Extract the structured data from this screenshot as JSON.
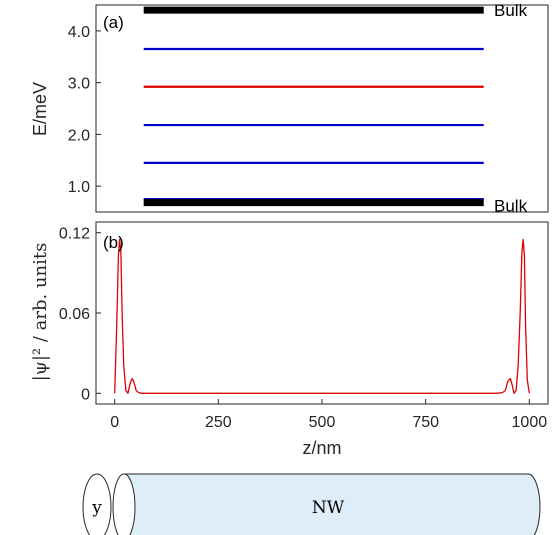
{
  "chart_data": [
    {
      "panel": "(a)",
      "type": "line",
      "ylabel": "E/meV",
      "ylim": [
        0.5,
        4.5
      ],
      "yticks": [
        1.0,
        2.0,
        3.0,
        4.0
      ],
      "ytick_labels": [
        "1.0",
        "2.0",
        "3.0",
        "4.0"
      ],
      "xrange": [
        70,
        890
      ],
      "levels": [
        {
          "energy": 4.4,
          "color": "#000000",
          "width": "thick",
          "label": "Bulk"
        },
        {
          "energy": 3.65,
          "color": "#0000cc",
          "width": "thin"
        },
        {
          "energy": 2.92,
          "color": "#dd0000",
          "width": "thin"
        },
        {
          "energy": 2.18,
          "color": "#0000cc",
          "width": "thin"
        },
        {
          "energy": 1.45,
          "color": "#0000cc",
          "width": "thin"
        },
        {
          "energy": 0.75,
          "color": "#0000cc",
          "width": "thin"
        },
        {
          "energy": 0.68,
          "color": "#000000",
          "width": "thick",
          "label": "Bulk"
        }
      ],
      "grid": false
    },
    {
      "panel": "(b)",
      "type": "line",
      "xlabel": "z/nm",
      "ylabel": "|ψ|² / arb. units",
      "xlim": [
        -45,
        1045
      ],
      "ylim": [
        -0.008,
        0.128
      ],
      "xticks": [
        0,
        250,
        500,
        750,
        1000
      ],
      "xtick_labels": [
        "0",
        "250",
        "500",
        "750",
        "1000"
      ],
      "yticks": [
        0,
        0.06,
        0.12
      ],
      "ytick_labels": [
        "0",
        "0.06",
        "0.12"
      ],
      "series": [
        {
          "color": "#dd0000",
          "x": [
            0,
            5,
            9,
            12,
            15,
            18,
            22,
            27,
            32,
            37,
            42,
            46,
            52,
            58,
            65,
            80,
            100,
            500,
            900,
            920,
            935,
            942,
            948,
            954,
            958,
            963,
            968,
            973,
            978,
            982,
            985,
            988,
            991,
            995,
            1000
          ],
          "y": [
            0,
            0.05,
            0.103,
            0.115,
            0.105,
            0.06,
            0.02,
            0.002,
            0.0,
            0.007,
            0.011,
            0.009,
            0.002,
            0.0005,
            0.0,
            0.0,
            0.0,
            0.0,
            0.0,
            0.0,
            0.0005,
            0.002,
            0.009,
            0.011,
            0.007,
            0.0,
            0.002,
            0.02,
            0.06,
            0.105,
            0.115,
            0.103,
            0.05,
            0.01,
            0.0
          ]
        }
      ],
      "grid": false
    }
  ],
  "diagram": {
    "axis_label": "y",
    "body_label": "NW",
    "body_fill": "#ddeef8"
  }
}
